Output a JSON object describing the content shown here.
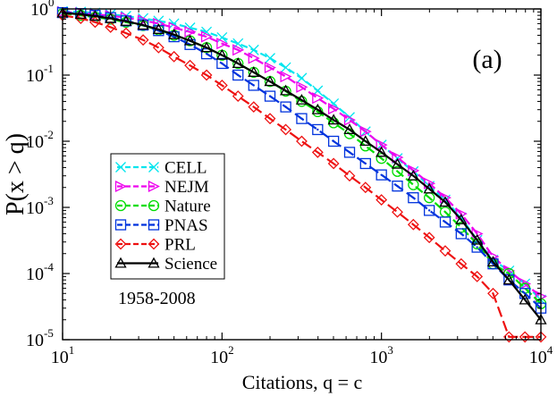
{
  "chart_data": {
    "type": "line",
    "panel_label": "(a)",
    "xlabel": "Citations, q = c",
    "ylabel": "P(x > q)",
    "xscale": "log",
    "yscale": "log",
    "xlim": [
      10,
      10000
    ],
    "ylim": [
      1e-05,
      1
    ],
    "x_ticks": [
      {
        "value": 10,
        "base": "10",
        "exp": "1"
      },
      {
        "value": 100,
        "base": "10",
        "exp": "2"
      },
      {
        "value": 1000,
        "base": "10",
        "exp": "3"
      },
      {
        "value": 10000,
        "base": "10",
        "exp": "4"
      }
    ],
    "y_ticks": [
      {
        "value": 1,
        "base": "10",
        "exp": "0"
      },
      {
        "value": 0.1,
        "base": "10",
        "exp": "-1"
      },
      {
        "value": 0.01,
        "base": "10",
        "exp": "-2"
      },
      {
        "value": 0.001,
        "base": "10",
        "exp": "-3"
      },
      {
        "value": 0.0001,
        "base": "10",
        "exp": "-4"
      },
      {
        "value": 1e-05,
        "base": "10",
        "exp": "-5"
      }
    ],
    "legend_position": "left-center",
    "annotation": "1958-2008",
    "series": [
      {
        "name": "CELL",
        "color": "#00e5ee",
        "marker": "x",
        "dash": "8,4",
        "x": [
          10,
          13,
          16,
          20,
          25,
          32,
          40,
          50,
          63,
          80,
          100,
          126,
          158,
          200,
          251,
          316,
          398,
          501,
          631,
          794,
          1000,
          1259,
          1585,
          1995,
          2512,
          3162,
          3981,
          5012,
          6310,
          7943,
          10000
        ],
        "y": [
          0.92,
          0.9,
          0.87,
          0.83,
          0.78,
          0.72,
          0.66,
          0.6,
          0.52,
          0.45,
          0.37,
          0.3,
          0.24,
          0.18,
          0.13,
          0.09,
          0.058,
          0.037,
          0.023,
          0.014,
          0.0088,
          0.0055,
          0.0035,
          0.0021,
          0.0013,
          0.0007,
          0.00032,
          0.00016,
          0.00011,
          7e-05,
          4e-05
        ]
      },
      {
        "name": "NEJM",
        "color": "#ee00ee",
        "marker": "triangle-right",
        "dash": "10,4",
        "x": [
          10,
          13,
          16,
          20,
          25,
          32,
          40,
          50,
          63,
          80,
          100,
          126,
          158,
          200,
          251,
          316,
          398,
          501,
          631,
          794,
          1000,
          1259,
          1585,
          1995,
          2512,
          3162,
          3981,
          5012,
          6310,
          7943,
          10000
        ],
        "y": [
          0.9,
          0.87,
          0.83,
          0.79,
          0.74,
          0.67,
          0.6,
          0.52,
          0.45,
          0.38,
          0.3,
          0.24,
          0.18,
          0.13,
          0.095,
          0.066,
          0.045,
          0.031,
          0.021,
          0.014,
          0.0088,
          0.0057,
          0.0036,
          0.0023,
          0.0014,
          0.0008,
          0.0004,
          0.00018,
          0.00011,
          7e-05,
          4.5e-05
        ]
      },
      {
        "name": "Nature",
        "color": "#00dd00",
        "marker": "circle",
        "dash": "10,4",
        "x": [
          10,
          13,
          16,
          20,
          25,
          32,
          40,
          50,
          63,
          80,
          100,
          126,
          158,
          200,
          251,
          316,
          398,
          501,
          631,
          794,
          1000,
          1259,
          1585,
          1995,
          2512,
          3162,
          3981,
          5012,
          6310,
          7943,
          10000
        ],
        "y": [
          0.85,
          0.8,
          0.75,
          0.7,
          0.63,
          0.56,
          0.48,
          0.4,
          0.33,
          0.26,
          0.2,
          0.15,
          0.11,
          0.08,
          0.057,
          0.04,
          0.028,
          0.019,
          0.013,
          0.0085,
          0.0055,
          0.0035,
          0.0022,
          0.0014,
          0.00085,
          0.0005,
          0.00028,
          0.00014,
          0.0001,
          6e-05,
          3.5e-05
        ]
      },
      {
        "name": "PNAS",
        "color": "#0033dd",
        "marker": "square-dot",
        "dash": "12,5",
        "x": [
          10,
          13,
          16,
          20,
          25,
          32,
          40,
          50,
          63,
          80,
          100,
          126,
          158,
          200,
          251,
          316,
          398,
          501,
          631,
          794,
          1000,
          1259,
          1585,
          1995,
          2512,
          3162,
          3981,
          5012,
          6310,
          7943,
          10000
        ],
        "y": [
          0.88,
          0.85,
          0.8,
          0.74,
          0.66,
          0.57,
          0.47,
          0.38,
          0.29,
          0.21,
          0.15,
          0.1,
          0.07,
          0.048,
          0.033,
          0.022,
          0.015,
          0.01,
          0.0068,
          0.0046,
          0.0031,
          0.0021,
          0.0014,
          0.0009,
          0.0006,
          0.0004,
          0.00025,
          0.00014,
          8e-05,
          5e-05,
          3e-05
        ]
      },
      {
        "name": "PRL",
        "color": "#ee1111",
        "marker": "diamond",
        "dash": "12,5",
        "x": [
          10,
          13,
          16,
          20,
          25,
          32,
          40,
          50,
          63,
          80,
          100,
          126,
          158,
          200,
          251,
          316,
          398,
          501,
          631,
          794,
          1000,
          1259,
          1585,
          1995,
          2512,
          3162,
          3981,
          5012,
          6310,
          7943,
          10000
        ],
        "y": [
          0.8,
          0.72,
          0.63,
          0.53,
          0.43,
          0.34,
          0.26,
          0.19,
          0.14,
          0.1,
          0.07,
          0.048,
          0.033,
          0.022,
          0.015,
          0.01,
          0.0068,
          0.0046,
          0.003,
          0.002,
          0.0013,
          0.00085,
          0.00055,
          0.00035,
          0.00022,
          0.00014,
          9e-05,
          5e-05,
          1.1e-05,
          1.1e-05,
          1.1e-05
        ]
      },
      {
        "name": "Science",
        "color": "#000000",
        "marker": "triangle-up",
        "dash": "",
        "x": [
          10,
          13,
          16,
          20,
          25,
          32,
          40,
          50,
          63,
          80,
          100,
          126,
          158,
          200,
          251,
          316,
          398,
          501,
          631,
          794,
          1000,
          1259,
          1585,
          1995,
          2512,
          3162,
          3981,
          5012,
          6310,
          7943,
          10000
        ],
        "y": [
          0.87,
          0.83,
          0.78,
          0.72,
          0.65,
          0.57,
          0.49,
          0.41,
          0.33,
          0.26,
          0.2,
          0.15,
          0.11,
          0.08,
          0.058,
          0.042,
          0.03,
          0.021,
          0.015,
          0.01,
          0.0068,
          0.0045,
          0.003,
          0.0019,
          0.0012,
          0.00065,
          0.00032,
          0.00015,
          8e-05,
          4e-05,
          2e-05
        ]
      }
    ]
  }
}
